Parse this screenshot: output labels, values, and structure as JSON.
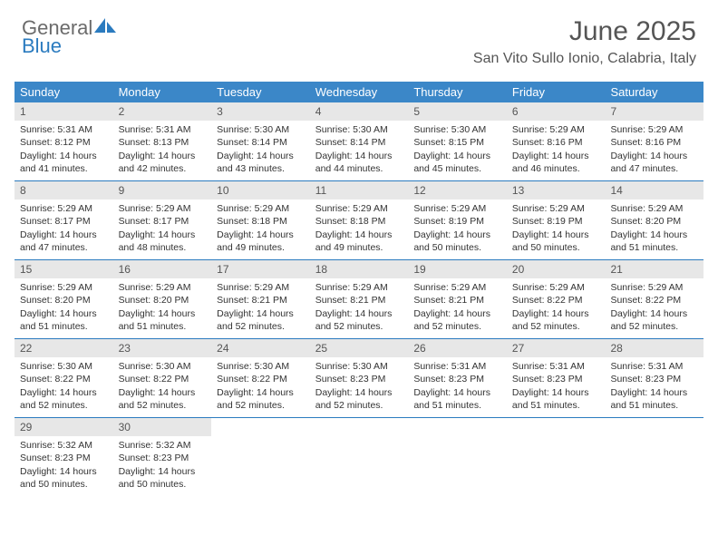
{
  "logo": {
    "text_gray": "General",
    "text_blue": "Blue",
    "icon_color": "#2b7bbf"
  },
  "title": "June 2025",
  "location": "San Vito Sullo Ionio, Calabria, Italy",
  "colors": {
    "header_bg": "#3b87c8",
    "header_text": "#ffffff",
    "daynum_bg": "#e7e7e7",
    "daynum_text": "#555555",
    "border": "#2b7bbf",
    "body_text": "#333333",
    "title_text": "#555555"
  },
  "typography": {
    "month_title_size": 30,
    "location_size": 16,
    "dow_size": 13,
    "daynum_size": 12,
    "body_size": 10.5,
    "logo_size": 22
  },
  "days_of_week": [
    "Sunday",
    "Monday",
    "Tuesday",
    "Wednesday",
    "Thursday",
    "Friday",
    "Saturday"
  ],
  "weeks": [
    [
      {
        "num": "1",
        "sunrise": "Sunrise: 5:31 AM",
        "sunset": "Sunset: 8:12 PM",
        "day1": "Daylight: 14 hours",
        "day2": "and 41 minutes."
      },
      {
        "num": "2",
        "sunrise": "Sunrise: 5:31 AM",
        "sunset": "Sunset: 8:13 PM",
        "day1": "Daylight: 14 hours",
        "day2": "and 42 minutes."
      },
      {
        "num": "3",
        "sunrise": "Sunrise: 5:30 AM",
        "sunset": "Sunset: 8:14 PM",
        "day1": "Daylight: 14 hours",
        "day2": "and 43 minutes."
      },
      {
        "num": "4",
        "sunrise": "Sunrise: 5:30 AM",
        "sunset": "Sunset: 8:14 PM",
        "day1": "Daylight: 14 hours",
        "day2": "and 44 minutes."
      },
      {
        "num": "5",
        "sunrise": "Sunrise: 5:30 AM",
        "sunset": "Sunset: 8:15 PM",
        "day1": "Daylight: 14 hours",
        "day2": "and 45 minutes."
      },
      {
        "num": "6",
        "sunrise": "Sunrise: 5:29 AM",
        "sunset": "Sunset: 8:16 PM",
        "day1": "Daylight: 14 hours",
        "day2": "and 46 minutes."
      },
      {
        "num": "7",
        "sunrise": "Sunrise: 5:29 AM",
        "sunset": "Sunset: 8:16 PM",
        "day1": "Daylight: 14 hours",
        "day2": "and 47 minutes."
      }
    ],
    [
      {
        "num": "8",
        "sunrise": "Sunrise: 5:29 AM",
        "sunset": "Sunset: 8:17 PM",
        "day1": "Daylight: 14 hours",
        "day2": "and 47 minutes."
      },
      {
        "num": "9",
        "sunrise": "Sunrise: 5:29 AM",
        "sunset": "Sunset: 8:17 PM",
        "day1": "Daylight: 14 hours",
        "day2": "and 48 minutes."
      },
      {
        "num": "10",
        "sunrise": "Sunrise: 5:29 AM",
        "sunset": "Sunset: 8:18 PM",
        "day1": "Daylight: 14 hours",
        "day2": "and 49 minutes."
      },
      {
        "num": "11",
        "sunrise": "Sunrise: 5:29 AM",
        "sunset": "Sunset: 8:18 PM",
        "day1": "Daylight: 14 hours",
        "day2": "and 49 minutes."
      },
      {
        "num": "12",
        "sunrise": "Sunrise: 5:29 AM",
        "sunset": "Sunset: 8:19 PM",
        "day1": "Daylight: 14 hours",
        "day2": "and 50 minutes."
      },
      {
        "num": "13",
        "sunrise": "Sunrise: 5:29 AM",
        "sunset": "Sunset: 8:19 PM",
        "day1": "Daylight: 14 hours",
        "day2": "and 50 minutes."
      },
      {
        "num": "14",
        "sunrise": "Sunrise: 5:29 AM",
        "sunset": "Sunset: 8:20 PM",
        "day1": "Daylight: 14 hours",
        "day2": "and 51 minutes."
      }
    ],
    [
      {
        "num": "15",
        "sunrise": "Sunrise: 5:29 AM",
        "sunset": "Sunset: 8:20 PM",
        "day1": "Daylight: 14 hours",
        "day2": "and 51 minutes."
      },
      {
        "num": "16",
        "sunrise": "Sunrise: 5:29 AM",
        "sunset": "Sunset: 8:20 PM",
        "day1": "Daylight: 14 hours",
        "day2": "and 51 minutes."
      },
      {
        "num": "17",
        "sunrise": "Sunrise: 5:29 AM",
        "sunset": "Sunset: 8:21 PM",
        "day1": "Daylight: 14 hours",
        "day2": "and 52 minutes."
      },
      {
        "num": "18",
        "sunrise": "Sunrise: 5:29 AM",
        "sunset": "Sunset: 8:21 PM",
        "day1": "Daylight: 14 hours",
        "day2": "and 52 minutes."
      },
      {
        "num": "19",
        "sunrise": "Sunrise: 5:29 AM",
        "sunset": "Sunset: 8:21 PM",
        "day1": "Daylight: 14 hours",
        "day2": "and 52 minutes."
      },
      {
        "num": "20",
        "sunrise": "Sunrise: 5:29 AM",
        "sunset": "Sunset: 8:22 PM",
        "day1": "Daylight: 14 hours",
        "day2": "and 52 minutes."
      },
      {
        "num": "21",
        "sunrise": "Sunrise: 5:29 AM",
        "sunset": "Sunset: 8:22 PM",
        "day1": "Daylight: 14 hours",
        "day2": "and 52 minutes."
      }
    ],
    [
      {
        "num": "22",
        "sunrise": "Sunrise: 5:30 AM",
        "sunset": "Sunset: 8:22 PM",
        "day1": "Daylight: 14 hours",
        "day2": "and 52 minutes."
      },
      {
        "num": "23",
        "sunrise": "Sunrise: 5:30 AM",
        "sunset": "Sunset: 8:22 PM",
        "day1": "Daylight: 14 hours",
        "day2": "and 52 minutes."
      },
      {
        "num": "24",
        "sunrise": "Sunrise: 5:30 AM",
        "sunset": "Sunset: 8:22 PM",
        "day1": "Daylight: 14 hours",
        "day2": "and 52 minutes."
      },
      {
        "num": "25",
        "sunrise": "Sunrise: 5:30 AM",
        "sunset": "Sunset: 8:23 PM",
        "day1": "Daylight: 14 hours",
        "day2": "and 52 minutes."
      },
      {
        "num": "26",
        "sunrise": "Sunrise: 5:31 AM",
        "sunset": "Sunset: 8:23 PM",
        "day1": "Daylight: 14 hours",
        "day2": "and 51 minutes."
      },
      {
        "num": "27",
        "sunrise": "Sunrise: 5:31 AM",
        "sunset": "Sunset: 8:23 PM",
        "day1": "Daylight: 14 hours",
        "day2": "and 51 minutes."
      },
      {
        "num": "28",
        "sunrise": "Sunrise: 5:31 AM",
        "sunset": "Sunset: 8:23 PM",
        "day1": "Daylight: 14 hours",
        "day2": "and 51 minutes."
      }
    ],
    [
      {
        "num": "29",
        "sunrise": "Sunrise: 5:32 AM",
        "sunset": "Sunset: 8:23 PM",
        "day1": "Daylight: 14 hours",
        "day2": "and 50 minutes."
      },
      {
        "num": "30",
        "sunrise": "Sunrise: 5:32 AM",
        "sunset": "Sunset: 8:23 PM",
        "day1": "Daylight: 14 hours",
        "day2": "and 50 minutes."
      },
      null,
      null,
      null,
      null,
      null
    ]
  ]
}
